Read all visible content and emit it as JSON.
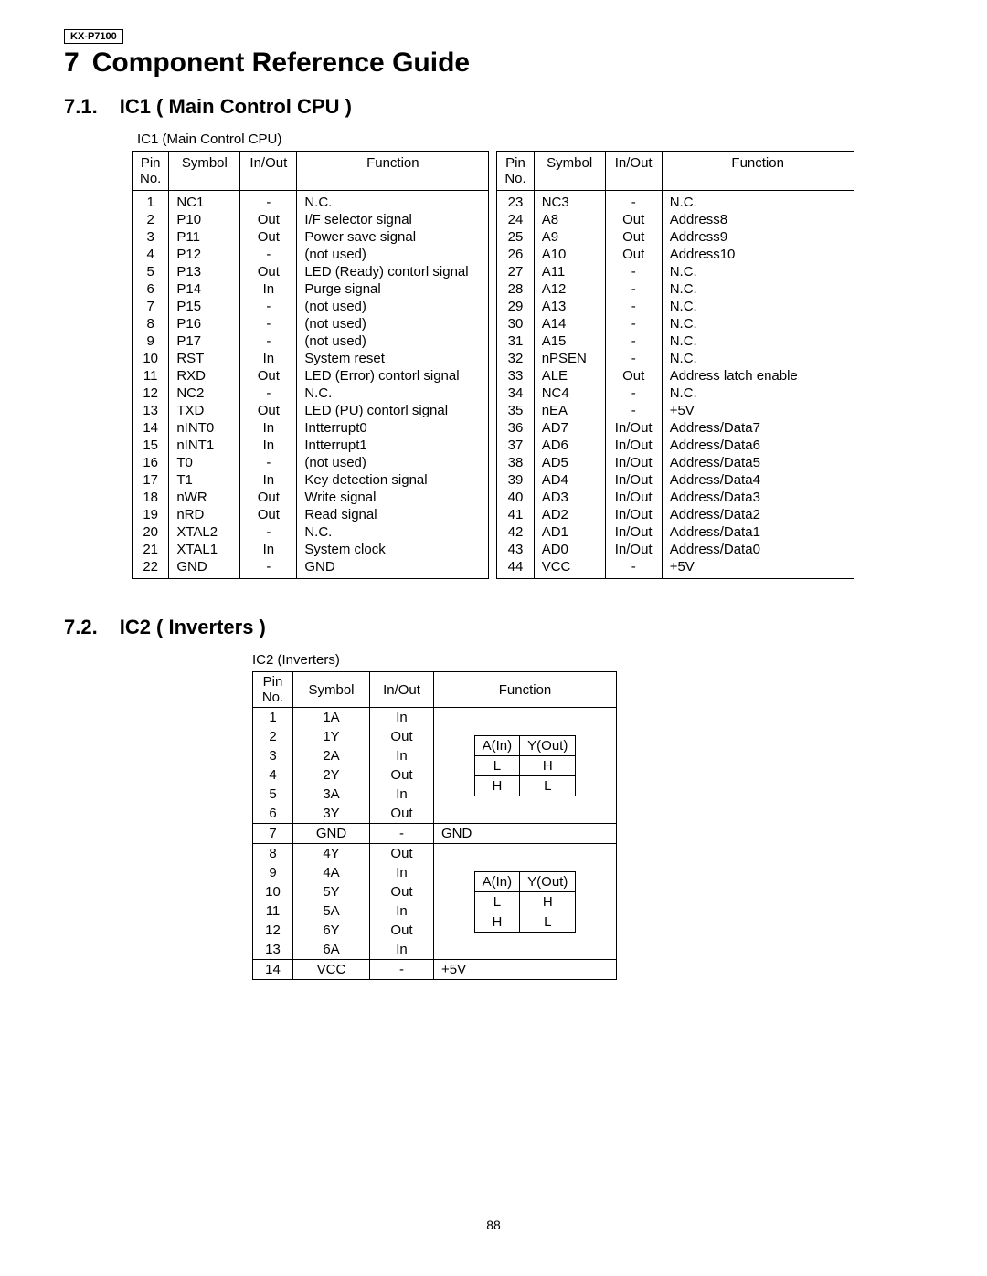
{
  "model": "KX-P7100",
  "chapter": {
    "num": "7",
    "title": "Component Reference Guide"
  },
  "sec71": {
    "num": "7.1.",
    "title": "IC1 ( Main Control CPU )",
    "caption": "IC1 (Main Control CPU)"
  },
  "sec72": {
    "num": "7.2.",
    "title": "IC2 ( Inverters )",
    "caption": "IC2 (Inverters)"
  },
  "headers": {
    "pin": "Pin\nNo.",
    "sym": "Symbol",
    "io": "In/Out",
    "fn": "Function"
  },
  "ic1_left": [
    [
      "1",
      "NC1",
      "-",
      "N.C."
    ],
    [
      "2",
      "P10",
      "Out",
      "I/F selector signal"
    ],
    [
      "3",
      "P11",
      "Out",
      "Power save signal"
    ],
    [
      "4",
      "P12",
      "-",
      "(not used)"
    ],
    [
      "5",
      "P13",
      "Out",
      "LED (Ready) contorl signal"
    ],
    [
      "6",
      "P14",
      "In",
      "Purge signal"
    ],
    [
      "7",
      "P15",
      "-",
      "(not used)"
    ],
    [
      "8",
      "P16",
      "-",
      "(not used)"
    ],
    [
      "9",
      "P17",
      "-",
      "(not used)"
    ],
    [
      "10",
      "RST",
      "In",
      "System reset"
    ],
    [
      "11",
      "RXD",
      "Out",
      "LED (Error) contorl signal"
    ],
    [
      "12",
      "NC2",
      "-",
      "N.C."
    ],
    [
      "13",
      "TXD",
      "Out",
      "LED (PU) contorl signal"
    ],
    [
      "14",
      "nINT0",
      "In",
      "Intterrupt0"
    ],
    [
      "15",
      "nINT1",
      "In",
      "Intterrupt1"
    ],
    [
      "16",
      "T0",
      "-",
      "(not used)"
    ],
    [
      "17",
      "T1",
      "In",
      "Key detection signal"
    ],
    [
      "18",
      "nWR",
      "Out",
      "Write signal"
    ],
    [
      "19",
      "nRD",
      "Out",
      "Read signal"
    ],
    [
      "20",
      "XTAL2",
      "-",
      "N.C."
    ],
    [
      "21",
      "XTAL1",
      "In",
      "System clock"
    ],
    [
      "22",
      "GND",
      "-",
      "GND"
    ]
  ],
  "ic1_right": [
    [
      "23",
      "NC3",
      "-",
      "N.C."
    ],
    [
      "24",
      "A8",
      "Out",
      "Address8"
    ],
    [
      "25",
      "A9",
      "Out",
      "Address9"
    ],
    [
      "26",
      "A10",
      "Out",
      "Address10"
    ],
    [
      "27",
      "A11",
      "-",
      "N.C."
    ],
    [
      "28",
      "A12",
      "-",
      "N.C."
    ],
    [
      "29",
      "A13",
      "-",
      "N.C."
    ],
    [
      "30",
      "A14",
      "-",
      "N.C."
    ],
    [
      "31",
      "A15",
      "-",
      "N.C."
    ],
    [
      "32",
      "nPSEN",
      "-",
      "N.C."
    ],
    [
      "33",
      "ALE",
      "Out",
      "Address latch enable"
    ],
    [
      "34",
      "NC4",
      "-",
      "N.C."
    ],
    [
      "35",
      "nEA",
      "-",
      "+5V"
    ],
    [
      "36",
      "AD7",
      "In/Out",
      "Address/Data7"
    ],
    [
      "37",
      "AD6",
      "In/Out",
      "Address/Data6"
    ],
    [
      "38",
      "AD5",
      "In/Out",
      "Address/Data5"
    ],
    [
      "39",
      "AD4",
      "In/Out",
      "Address/Data4"
    ],
    [
      "40",
      "AD3",
      "In/Out",
      "Address/Data3"
    ],
    [
      "41",
      "AD2",
      "In/Out",
      "Address/Data2"
    ],
    [
      "42",
      "AD1",
      "In/Out",
      "Address/Data1"
    ],
    [
      "43",
      "AD0",
      "In/Out",
      "Address/Data0"
    ],
    [
      "44",
      "VCC",
      "-",
      "+5V"
    ]
  ],
  "ic2_block1": [
    [
      "1",
      "1A",
      "In"
    ],
    [
      "2",
      "1Y",
      "Out"
    ],
    [
      "3",
      "2A",
      "In"
    ],
    [
      "4",
      "2Y",
      "Out"
    ],
    [
      "5",
      "3A",
      "In"
    ],
    [
      "6",
      "3Y",
      "Out"
    ]
  ],
  "ic2_gnd": [
    "7",
    "GND",
    "-",
    "GND"
  ],
  "ic2_block2": [
    [
      "8",
      "4Y",
      "Out"
    ],
    [
      "9",
      "4A",
      "In"
    ],
    [
      "10",
      "5Y",
      "Out"
    ],
    [
      "11",
      "5A",
      "In"
    ],
    [
      "12",
      "6Y",
      "Out"
    ],
    [
      "13",
      "6A",
      "In"
    ]
  ],
  "ic2_vcc": [
    "14",
    "VCC",
    "-",
    "+5V"
  ],
  "truth": {
    "h1": "A(In)",
    "h2": "Y(Out)",
    "r1": [
      "L",
      "H"
    ],
    "r2": [
      "H",
      "L"
    ]
  },
  "pagenum": "88"
}
